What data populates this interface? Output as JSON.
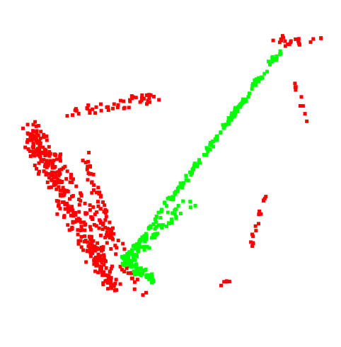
{
  "chart_data": {
    "type": "scatter",
    "title": "",
    "xlabel": "",
    "ylabel": "",
    "axes_visible": false,
    "grid": false,
    "legend": "none",
    "xlim": [
      0,
      1
    ],
    "ylim": [
      0,
      1
    ],
    "marker": "square",
    "series": [
      {
        "color": "#ff0000",
        "segments": [
          {
            "from": [
              0.085,
              0.62
            ],
            "to": [
              0.33,
              0.17
            ],
            "n": 320,
            "spread": 0.04
          },
          {
            "from": [
              0.1,
              0.64
            ],
            "to": [
              0.42,
              0.15
            ],
            "n": 90,
            "spread": 0.03
          },
          {
            "from": [
              0.19,
              0.67
            ],
            "to": [
              0.45,
              0.72
            ],
            "n": 50,
            "spread": 0.03
          },
          {
            "from": [
              0.25,
              0.55
            ],
            "to": [
              0.33,
              0.3
            ],
            "n": 60,
            "spread": 0.025
          },
          {
            "from": [
              0.8,
              0.88
            ],
            "to": [
              0.94,
              0.88
            ],
            "n": 22,
            "spread": 0.02
          },
          {
            "from": [
              0.86,
              0.77
            ],
            "to": [
              0.9,
              0.65
            ],
            "n": 9,
            "spread": 0.008
          },
          {
            "from": [
              0.73,
              0.28
            ],
            "to": [
              0.78,
              0.45
            ],
            "n": 16,
            "spread": 0.008
          },
          {
            "from": [
              0.63,
              0.17
            ],
            "to": [
              0.71,
              0.21
            ],
            "n": 5,
            "spread": 0.01
          }
        ]
      },
      {
        "color": "#00ff00",
        "segments": [
          {
            "from": [
              0.36,
              0.24
            ],
            "to": [
              0.82,
              0.85
            ],
            "n": 190,
            "spread": 0.012
          },
          {
            "from": [
              0.36,
              0.24
            ],
            "to": [
              0.55,
              0.42
            ],
            "n": 70,
            "spread": 0.03
          },
          {
            "from": [
              0.36,
              0.26
            ],
            "to": [
              0.45,
              0.19
            ],
            "n": 60,
            "spread": 0.02
          }
        ]
      }
    ]
  }
}
